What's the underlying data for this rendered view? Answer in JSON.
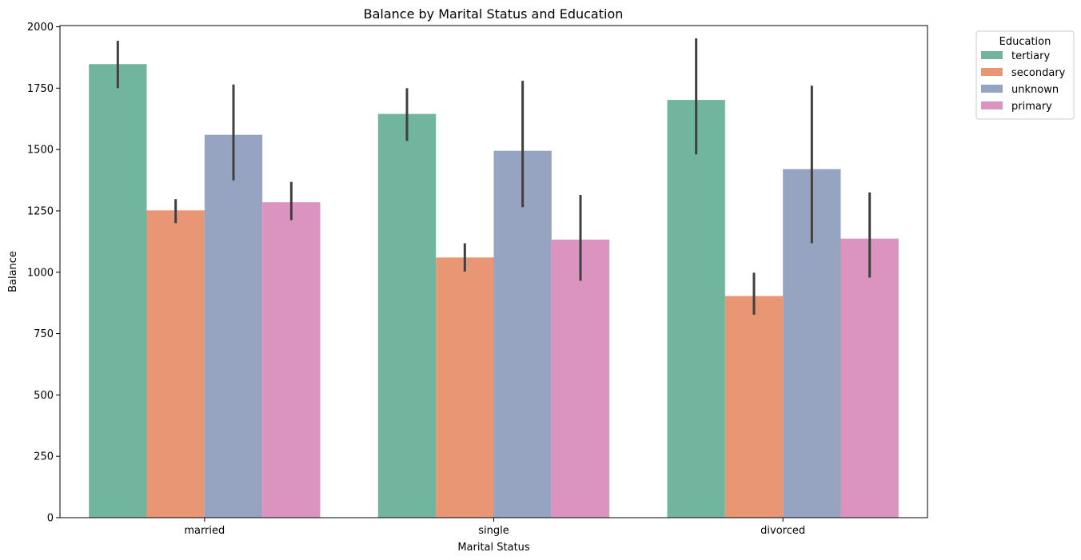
{
  "chart_data": {
    "type": "bar",
    "title": "Balance by Marital Status and Education",
    "xlabel": "Marital Status",
    "ylabel": "Balance",
    "categories": [
      "married",
      "single",
      "divorced"
    ],
    "ylim": [
      0,
      2000
    ],
    "yticks": [
      0,
      250,
      500,
      750,
      1000,
      1250,
      1500,
      1750,
      2000
    ],
    "grid": false,
    "legend": {
      "title": "Education",
      "placement": "outside-top-right"
    },
    "series": [
      {
        "name": "tertiary",
        "color": "#72b59f",
        "values": [
          1848,
          1645,
          1702
        ],
        "err_low": [
          1750,
          1535,
          1480
        ],
        "err_high": [
          1943,
          1750,
          1953
        ]
      },
      {
        "name": "secondary",
        "color": "#e89673",
        "values": [
          1252,
          1060,
          903
        ],
        "err_low": [
          1200,
          1003,
          827
        ],
        "err_high": [
          1298,
          1118,
          998
        ]
      },
      {
        "name": "unknown",
        "color": "#96a4c2",
        "values": [
          1560,
          1495,
          1420
        ],
        "err_low": [
          1374,
          1265,
          1118
        ],
        "err_high": [
          1765,
          1780,
          1760
        ]
      },
      {
        "name": "primary",
        "color": "#db94c0",
        "values": [
          1285,
          1133,
          1137
        ],
        "err_low": [
          1212,
          965,
          978
        ],
        "err_high": [
          1368,
          1315,
          1325
        ]
      }
    ]
  }
}
